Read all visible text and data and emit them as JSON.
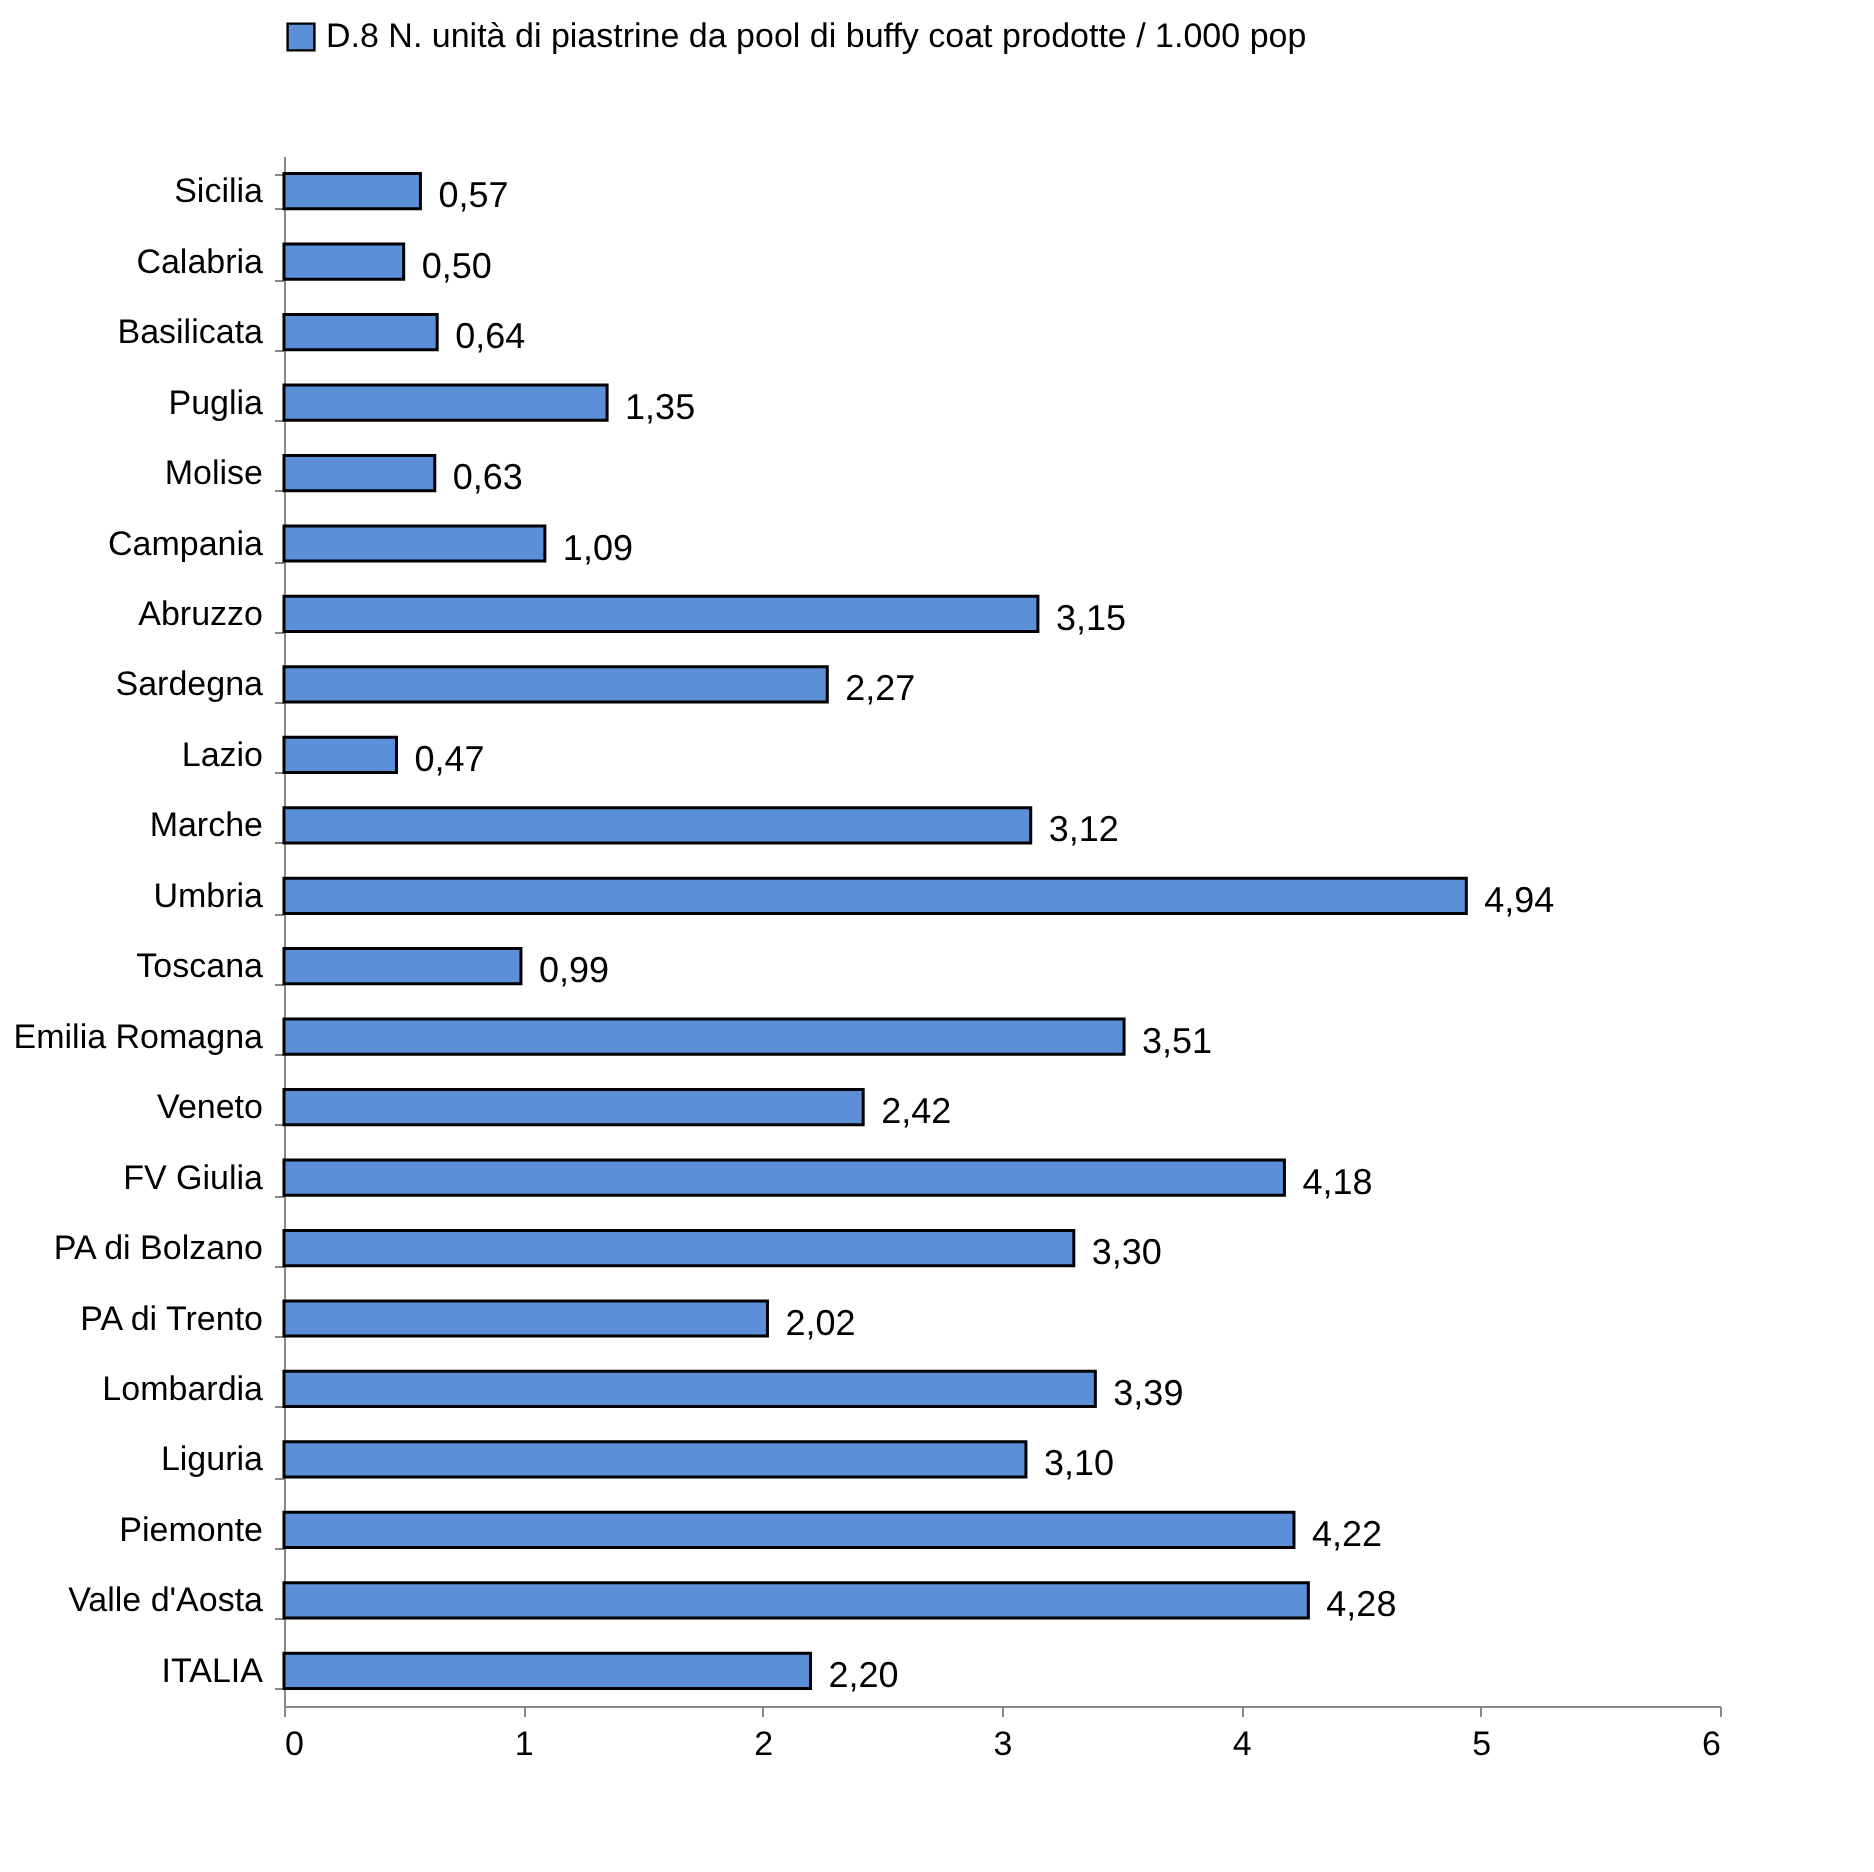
{
  "chart_data": {
    "type": "bar",
    "orientation": "horizontal",
    "categories": [
      "Sicilia",
      "Calabria",
      "Basilicata",
      "Puglia",
      "Molise",
      "Campania",
      "Abruzzo",
      "Sardegna",
      "Lazio",
      "Marche",
      "Umbria",
      "Toscana",
      "Emilia Romagna",
      "Veneto",
      "FV Giulia",
      "PA di Bolzano",
      "PA di Trento",
      "Lombardia",
      "Liguria",
      "Piemonte",
      "Valle d'Aosta",
      "ITALIA"
    ],
    "series": [
      {
        "name": "D.8 N. unità di  piastrine da pool di buffy coat prodotte / 1.000 pop",
        "color": "#5b8fd8",
        "values": [
          0.57,
          0.5,
          0.64,
          1.35,
          0.63,
          1.09,
          3.15,
          2.27,
          0.47,
          3.12,
          4.94,
          0.99,
          3.51,
          2.42,
          4.18,
          3.3,
          2.02,
          3.39,
          3.1,
          4.22,
          4.28,
          2.2
        ],
        "value_labels": [
          "0,57",
          "0,50",
          "0,64",
          "1,35",
          "0,63",
          "1,09",
          "3,15",
          "2,27",
          "0,47",
          "3,12",
          "4,94",
          "0,99",
          "3,51",
          "2,42",
          "4,18",
          "3,30",
          "2,02",
          "3,39",
          "3,10",
          "4,22",
          "4,28",
          "2,20"
        ]
      }
    ],
    "xlim": [
      0,
      6
    ],
    "xticks": [
      0,
      1,
      2,
      3,
      4,
      5,
      6
    ],
    "grid": false,
    "legend": "top"
  }
}
